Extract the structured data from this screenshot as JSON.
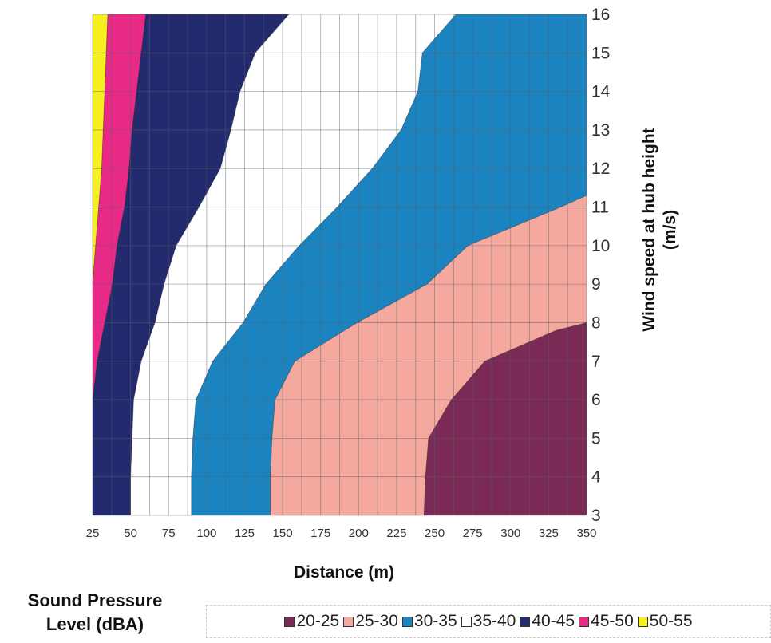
{
  "chart_data": {
    "type": "contour",
    "title": "",
    "xlabel": "Distance (m)",
    "ylabel": "Wind speed at hub height (m/s)",
    "xlim": [
      25,
      350
    ],
    "ylim": [
      3,
      16
    ],
    "x_ticks": [
      25,
      50,
      75,
      100,
      125,
      150,
      175,
      200,
      225,
      250,
      275,
      300,
      325,
      350
    ],
    "y_ticks": [
      3,
      4,
      5,
      6,
      7,
      8,
      9,
      10,
      11,
      12,
      13,
      14,
      15,
      16
    ],
    "grid": true,
    "legend_title": "Sound Pressure Level (dBA)",
    "legend_position": "bottom",
    "levels": [
      {
        "label": "20-25",
        "color": "#7a2a55"
      },
      {
        "label": "25-30",
        "color": "#f5a99e"
      },
      {
        "label": "30-35",
        "color": "#1b84c0"
      },
      {
        "label": "35-40",
        "color": "#ffffff"
      },
      {
        "label": "40-45",
        "color": "#232a6e"
      },
      {
        "label": "45-50",
        "color": "#e82a86"
      },
      {
        "label": "50-55",
        "color": "#f7f021"
      }
    ],
    "boundaries": [
      {
        "between": "50-55 / 45-50",
        "points": [
          [
            25,
            9
          ],
          [
            27,
            10
          ],
          [
            29,
            11
          ],
          [
            31,
            12
          ],
          [
            32,
            13
          ],
          [
            33,
            14
          ],
          [
            34,
            15
          ],
          [
            35,
            16
          ]
        ]
      },
      {
        "between": "45-50 / 40-45",
        "points": [
          [
            25,
            6
          ],
          [
            28,
            7
          ],
          [
            33,
            8
          ],
          [
            38,
            9
          ],
          [
            41,
            10
          ],
          [
            46,
            11
          ],
          [
            49,
            12
          ],
          [
            51,
            13
          ],
          [
            54,
            14
          ],
          [
            57,
            15
          ],
          [
            60,
            16
          ]
        ]
      },
      {
        "between": "40-45 / 35-40",
        "points": [
          [
            50,
            3
          ],
          [
            50,
            4
          ],
          [
            51,
            5
          ],
          [
            52,
            6
          ],
          [
            57,
            7
          ],
          [
            66,
            8
          ],
          [
            72,
            9
          ],
          [
            80,
            10
          ],
          [
            95,
            11
          ],
          [
            109,
            12
          ],
          [
            116,
            13
          ],
          [
            122,
            14
          ],
          [
            132,
            15
          ],
          [
            154,
            16
          ]
        ]
      },
      {
        "between": "35-40 / 30-35",
        "points": [
          [
            90,
            3
          ],
          [
            90,
            4
          ],
          [
            91,
            5
          ],
          [
            93,
            6
          ],
          [
            104,
            7
          ],
          [
            124,
            8
          ],
          [
            139,
            9
          ],
          [
            161,
            10
          ],
          [
            186,
            11
          ],
          [
            209,
            12
          ],
          [
            228,
            13
          ],
          [
            239,
            14
          ],
          [
            242,
            15
          ],
          [
            264,
            16
          ]
        ]
      },
      {
        "between": "30-35 / 25-30",
        "points": [
          [
            142,
            3
          ],
          [
            142,
            4
          ],
          [
            143,
            5
          ],
          [
            145,
            6
          ],
          [
            158,
            7
          ],
          [
            199,
            8
          ],
          [
            245,
            9
          ],
          [
            272,
            10
          ],
          [
            333,
            11
          ],
          [
            350,
            11.3
          ]
        ]
      },
      {
        "between": "25-30 / 20-25",
        "points": [
          [
            243,
            3
          ],
          [
            244,
            4
          ],
          [
            246,
            5
          ],
          [
            261,
            6
          ],
          [
            283,
            7
          ],
          [
            330,
            7.8
          ],
          [
            350,
            8
          ]
        ]
      }
    ]
  }
}
